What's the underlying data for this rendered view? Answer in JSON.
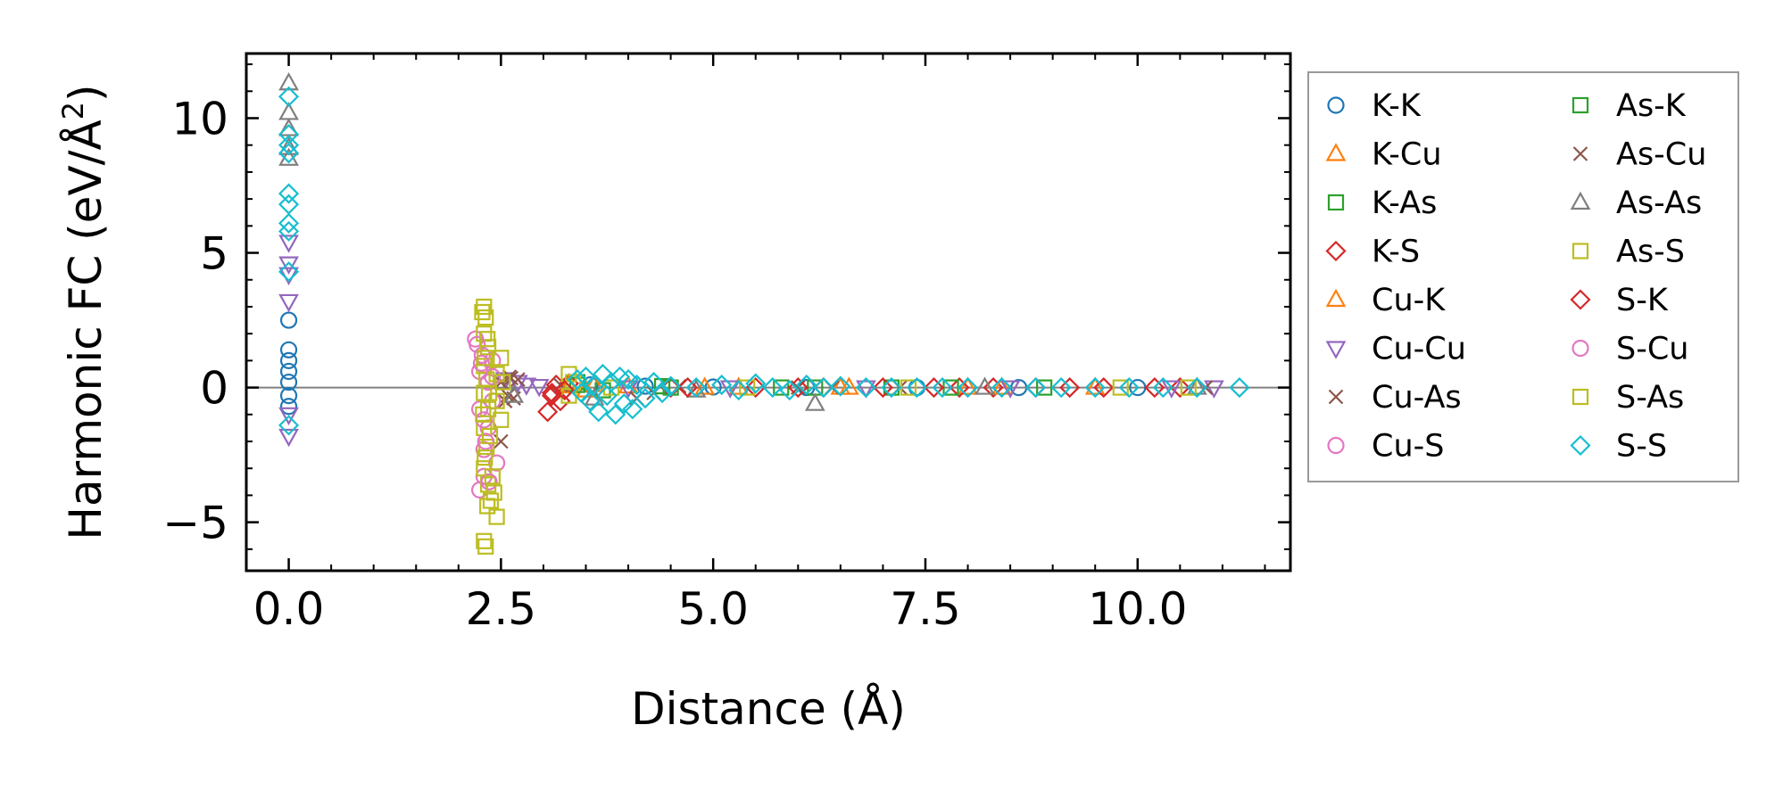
{
  "chart_data": {
    "type": "scatter",
    "title": "",
    "xlabel": "Distance (Å)",
    "ylabel_main": "Harmonic FC (eV/Å",
    "ylabel_sup": "2",
    "ylabel_close": ")",
    "ylabel": "Harmonic FC (eV/Å²)",
    "xlim": [
      -0.5,
      11.8
    ],
    "ylim": [
      -6.8,
      12.4
    ],
    "xticks": [
      0.0,
      2.5,
      5.0,
      7.5,
      10.0
    ],
    "xtick_labels": [
      "0.0",
      "2.5",
      "5.0",
      "7.5",
      "10.0"
    ],
    "yticks": [
      -5,
      0,
      5,
      10
    ],
    "ytick_labels": [
      "−5",
      "0",
      "5",
      "10"
    ],
    "reference_line_y": 0,
    "grid": false,
    "legend_position": "outside-right",
    "series": [
      {
        "name": "K-K",
        "marker": "circle",
        "color": "#1f77b4",
        "points": [
          [
            0,
            2.5
          ],
          [
            0,
            1.4
          ],
          [
            0,
            1.0
          ],
          [
            0,
            0.6
          ],
          [
            0,
            0.2
          ],
          [
            0,
            -0.3
          ],
          [
            0,
            -0.7
          ],
          [
            3.55,
            0.1
          ],
          [
            4.2,
            0.05
          ],
          [
            5.0,
            0.02
          ],
          [
            6.1,
            0
          ],
          [
            7.4,
            0
          ],
          [
            8.6,
            0
          ],
          [
            10.0,
            0
          ]
        ]
      },
      {
        "name": "K-Cu",
        "marker": "triangle-up",
        "color": "#ff7f0e",
        "points": [
          [
            3.3,
            0.1
          ],
          [
            3.5,
            -0.1
          ],
          [
            4.0,
            0.05
          ],
          [
            5.3,
            0
          ],
          [
            6.5,
            0
          ],
          [
            8.0,
            0
          ],
          [
            9.5,
            0
          ]
        ]
      },
      {
        "name": "K-As",
        "marker": "square",
        "color": "#2ca02c",
        "points": [
          [
            3.4,
            0.2
          ],
          [
            3.7,
            -0.1
          ],
          [
            4.4,
            0.05
          ],
          [
            5.8,
            0
          ],
          [
            7.1,
            0
          ],
          [
            8.9,
            0
          ]
        ]
      },
      {
        "name": "K-S",
        "marker": "diamond",
        "color": "#d62728",
        "points": [
          [
            3.05,
            -0.9
          ],
          [
            3.1,
            -0.3
          ],
          [
            3.15,
            0.1
          ],
          [
            3.2,
            -0.5
          ],
          [
            3.3,
            0.15
          ],
          [
            4.5,
            0
          ],
          [
            5.5,
            0
          ],
          [
            6.3,
            0
          ],
          [
            7.0,
            0
          ],
          [
            7.9,
            0
          ],
          [
            8.3,
            0
          ],
          [
            8.8,
            0
          ],
          [
            9.6,
            0
          ],
          [
            10.2,
            0
          ],
          [
            10.5,
            0
          ]
        ]
      },
      {
        "name": "Cu-K",
        "marker": "triangle-up",
        "color": "#ff7f0e",
        "points": [
          [
            3.3,
            0.05
          ],
          [
            3.6,
            0.1
          ],
          [
            4.9,
            0
          ],
          [
            6.6,
            0
          ],
          [
            8.4,
            0
          ]
        ]
      },
      {
        "name": "Cu-Cu",
        "marker": "triangle-down",
        "color": "#9467bd",
        "points": [
          [
            0,
            5.4
          ],
          [
            0,
            4.6
          ],
          [
            0,
            4.2
          ],
          [
            0,
            3.2
          ],
          [
            0,
            -1.0
          ],
          [
            0,
            -1.8
          ],
          [
            2.55,
            0.3
          ],
          [
            2.7,
            0.2
          ],
          [
            2.8,
            0.1
          ],
          [
            2.95,
            0.05
          ],
          [
            4.0,
            0
          ],
          [
            5.2,
            0
          ],
          [
            6.8,
            0
          ],
          [
            8.5,
            0
          ],
          [
            10.4,
            0
          ],
          [
            10.9,
            0
          ]
        ]
      },
      {
        "name": "Cu-As",
        "marker": "x",
        "color": "#8c564b",
        "points": [
          [
            2.5,
            -2.0
          ],
          [
            2.55,
            -0.5
          ],
          [
            2.6,
            0.4
          ],
          [
            2.65,
            -0.4
          ],
          [
            2.7,
            0.3
          ],
          [
            3.2,
            0.1
          ],
          [
            4.3,
            -0.2
          ],
          [
            4.1,
            -0.4
          ],
          [
            6.0,
            0
          ],
          [
            7.2,
            0
          ],
          [
            10.8,
            0
          ]
        ]
      },
      {
        "name": "Cu-S",
        "marker": "circle",
        "color": "#e377c2",
        "points": [
          [
            2.2,
            1.8
          ],
          [
            2.25,
            0.6
          ],
          [
            2.25,
            -0.8
          ],
          [
            2.25,
            -3.8
          ],
          [
            2.3,
            -2.3
          ],
          [
            2.3,
            -3.3
          ],
          [
            2.35,
            0.2
          ],
          [
            2.35,
            -1.5
          ],
          [
            2.4,
            1.0
          ],
          [
            2.4,
            -0.5
          ],
          [
            2.45,
            -2.8
          ],
          [
            2.28,
            1.2
          ]
        ]
      },
      {
        "name": "As-K",
        "marker": "square",
        "color": "#2ca02c",
        "points": [
          [
            3.4,
            0.1
          ],
          [
            4.5,
            0
          ],
          [
            6.2,
            0
          ],
          [
            7.8,
            0
          ]
        ]
      },
      {
        "name": "As-Cu",
        "marker": "x",
        "color": "#8c564b",
        "points": [
          [
            2.5,
            0.2
          ],
          [
            2.58,
            -0.3
          ],
          [
            2.62,
            0.35
          ],
          [
            4.6,
            0.05
          ],
          [
            6.4,
            0
          ]
        ]
      },
      {
        "name": "As-As",
        "marker": "triangle-up",
        "color": "#7f7f7f",
        "points": [
          [
            0,
            11.3
          ],
          [
            0,
            10.2
          ],
          [
            0,
            9.6
          ],
          [
            0,
            8.9
          ],
          [
            0,
            8.5
          ],
          [
            2.65,
            -0.3
          ],
          [
            3.6,
            -0.4
          ],
          [
            6.2,
            -0.6
          ],
          [
            4.8,
            -0.1
          ],
          [
            8.2,
            0
          ],
          [
            10.7,
            0
          ]
        ]
      },
      {
        "name": "As-S",
        "marker": "square",
        "color": "#bcbd22",
        "points": [
          [
            2.3,
            3.0
          ],
          [
            2.32,
            2.6
          ],
          [
            2.3,
            2.0
          ],
          [
            2.35,
            1.5
          ],
          [
            2.3,
            0.8
          ],
          [
            2.33,
            0.3
          ],
          [
            2.3,
            -0.2
          ],
          [
            2.35,
            -0.8
          ],
          [
            2.3,
            -1.5
          ],
          [
            2.33,
            -2.2
          ],
          [
            2.3,
            -3.0
          ],
          [
            2.35,
            -3.6
          ],
          [
            2.38,
            -4.2
          ],
          [
            2.45,
            -4.8
          ],
          [
            2.3,
            -5.7
          ],
          [
            2.32,
            -5.9
          ],
          [
            2.45,
            0.5
          ],
          [
            2.45,
            -0.5
          ],
          [
            3.3,
            0.5
          ],
          [
            3.35,
            0.2
          ],
          [
            3.3,
            -0.3
          ]
        ]
      },
      {
        "name": "S-K",
        "marker": "diamond",
        "color": "#d62728",
        "points": [
          [
            3.1,
            -0.2
          ],
          [
            3.25,
            -0.1
          ],
          [
            4.7,
            0
          ],
          [
            6.0,
            0
          ],
          [
            7.6,
            0
          ],
          [
            9.2,
            0
          ]
        ]
      },
      {
        "name": "S-Cu",
        "marker": "circle",
        "color": "#e377c2",
        "points": [
          [
            2.22,
            1.6
          ],
          [
            2.27,
            0.9
          ],
          [
            2.3,
            -1.2
          ],
          [
            2.32,
            -2.0
          ],
          [
            2.36,
            -3.5
          ],
          [
            2.4,
            0.4
          ]
        ]
      },
      {
        "name": "S-As",
        "marker": "square",
        "color": "#bcbd22",
        "points": [
          [
            2.28,
            2.8
          ],
          [
            2.34,
            1.8
          ],
          [
            2.31,
            1.1
          ],
          [
            2.36,
            -0.2
          ],
          [
            2.29,
            -1.0
          ],
          [
            2.37,
            -1.8
          ],
          [
            2.31,
            -2.6
          ],
          [
            2.4,
            -3.3
          ],
          [
            2.42,
            -3.9
          ],
          [
            2.34,
            -4.4
          ],
          [
            2.5,
            1.1
          ],
          [
            2.5,
            -1.2
          ],
          [
            2.52,
            0.2
          ],
          [
            3.8,
            0
          ],
          [
            5.4,
            0
          ],
          [
            7.3,
            0
          ],
          [
            9.8,
            0
          ],
          [
            10.6,
            0
          ]
        ]
      },
      {
        "name": "S-S",
        "marker": "diamond",
        "color": "#17becf",
        "points": [
          [
            0,
            10.8
          ],
          [
            0,
            9.4
          ],
          [
            0,
            9.0
          ],
          [
            0,
            8.7
          ],
          [
            0,
            7.2
          ],
          [
            0,
            6.8
          ],
          [
            0,
            6.1
          ],
          [
            0,
            5.8
          ],
          [
            0,
            4.3
          ],
          [
            0,
            -1.4
          ],
          [
            3.4,
            0.3
          ],
          [
            3.45,
            -0.2
          ],
          [
            3.5,
            0.4
          ],
          [
            3.55,
            -0.5
          ],
          [
            3.6,
            0.1
          ],
          [
            3.65,
            -0.9
          ],
          [
            3.7,
            0.5
          ],
          [
            3.75,
            -0.3
          ],
          [
            3.8,
            0.2
          ],
          [
            3.85,
            -1.0
          ],
          [
            3.9,
            0.4
          ],
          [
            3.95,
            -0.6
          ],
          [
            4.0,
            0.3
          ],
          [
            4.05,
            -0.8
          ],
          [
            4.1,
            0.1
          ],
          [
            4.2,
            -0.4
          ],
          [
            4.3,
            0.2
          ],
          [
            4.4,
            -0.2
          ],
          [
            4.5,
            0.05
          ],
          [
            4.8,
            0
          ],
          [
            5.1,
            0.1
          ],
          [
            5.3,
            -0.1
          ],
          [
            5.5,
            0.15
          ],
          [
            5.7,
            0
          ],
          [
            5.9,
            -0.1
          ],
          [
            6.1,
            0.1
          ],
          [
            6.3,
            0
          ],
          [
            6.5,
            0.05
          ],
          [
            6.8,
            0
          ],
          [
            7.1,
            0
          ],
          [
            7.4,
            0
          ],
          [
            7.7,
            0
          ],
          [
            8.0,
            0
          ],
          [
            8.4,
            0
          ],
          [
            8.8,
            0
          ],
          [
            9.1,
            0
          ],
          [
            9.5,
            0
          ],
          [
            9.9,
            0
          ],
          [
            10.3,
            0
          ],
          [
            10.7,
            0
          ],
          [
            11.2,
            0
          ]
        ]
      }
    ]
  }
}
